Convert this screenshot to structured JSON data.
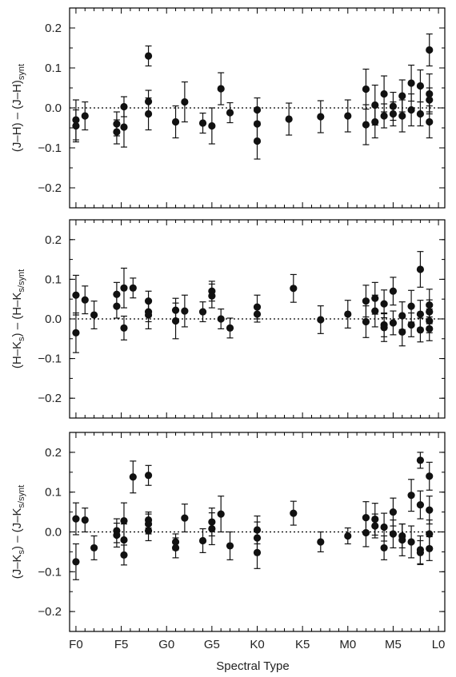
{
  "chart_data": {
    "type": "scatter",
    "xlabel": "Spectral Type",
    "x_ticks": [
      {
        "label": "F0",
        "pos": 0
      },
      {
        "label": "F5",
        "pos": 5
      },
      {
        "label": "G0",
        "pos": 10
      },
      {
        "label": "G5",
        "pos": 15
      },
      {
        "label": "K0",
        "pos": 20
      },
      {
        "label": "K5",
        "pos": 25
      },
      {
        "label": "M0",
        "pos": 30
      },
      {
        "label": "M5",
        "pos": 35
      },
      {
        "label": "L0",
        "pos": 40
      }
    ],
    "xlim": [
      -0.7,
      40.7
    ],
    "panels": [
      {
        "id": "jh",
        "ylabel_main": "(J–H) – (J–H)",
        "ylabel_sub": "synt",
        "ylim": [
          -0.25,
          0.25
        ],
        "y_ticks": [
          "0.2",
          "0.1",
          "0.0",
          "−0.1",
          "−0.2"
        ],
        "y_tick_values": [
          0.2,
          0.1,
          0.0,
          -0.1,
          -0.2
        ],
        "points": [
          {
            "x": 0.0,
            "y": -0.03,
            "err": 0.05
          },
          {
            "x": 0.0,
            "y": -0.045,
            "err": 0.04
          },
          {
            "x": 1.0,
            "y": -0.02,
            "err": 0.035
          },
          {
            "x": 4.5,
            "y": -0.04,
            "err": 0.03
          },
          {
            "x": 4.5,
            "y": -0.06,
            "err": 0.03
          },
          {
            "x": 5.3,
            "y": 0.003,
            "err": 0.025
          },
          {
            "x": 5.3,
            "y": -0.048,
            "err": 0.05
          },
          {
            "x": 8.0,
            "y": 0.13,
            "err": 0.025
          },
          {
            "x": 8.0,
            "y": 0.016,
            "err": 0.028
          },
          {
            "x": 8.0,
            "y": -0.015,
            "err": 0.04
          },
          {
            "x": 11.0,
            "y": -0.035,
            "err": 0.04
          },
          {
            "x": 12.0,
            "y": 0.015,
            "err": 0.05
          },
          {
            "x": 14.0,
            "y": -0.038,
            "err": 0.025
          },
          {
            "x": 15.0,
            "y": -0.045,
            "err": 0.045
          },
          {
            "x": 16.0,
            "y": 0.048,
            "err": 0.04
          },
          {
            "x": 17.0,
            "y": -0.012,
            "err": 0.025
          },
          {
            "x": 20.0,
            "y": -0.005,
            "err": 0.03
          },
          {
            "x": 20.0,
            "y": -0.04,
            "err": 0.04
          },
          {
            "x": 20.0,
            "y": -0.083,
            "err": 0.045
          },
          {
            "x": 23.5,
            "y": -0.028,
            "err": 0.04
          },
          {
            "x": 27.0,
            "y": -0.022,
            "err": 0.04
          },
          {
            "x": 30.0,
            "y": -0.02,
            "err": 0.04
          },
          {
            "x": 32.0,
            "y": 0.047,
            "err": 0.05
          },
          {
            "x": 32.0,
            "y": -0.042,
            "err": 0.05
          },
          {
            "x": 33.0,
            "y": 0.007,
            "err": 0.05
          },
          {
            "x": 33.0,
            "y": -0.035,
            "err": 0.04
          },
          {
            "x": 34.0,
            "y": 0.035,
            "err": 0.045
          },
          {
            "x": 34.0,
            "y": -0.02,
            "err": 0.03
          },
          {
            "x": 35.0,
            "y": 0.004,
            "err": 0.035
          },
          {
            "x": 35.0,
            "y": -0.015,
            "err": 0.03
          },
          {
            "x": 36.0,
            "y": 0.03,
            "err": 0.04
          },
          {
            "x": 36.0,
            "y": -0.02,
            "err": 0.04
          },
          {
            "x": 37.0,
            "y": 0.062,
            "err": 0.045
          },
          {
            "x": 37.0,
            "y": -0.005,
            "err": 0.04
          },
          {
            "x": 38.0,
            "y": 0.055,
            "err": 0.04
          },
          {
            "x": 38.0,
            "y": -0.015,
            "err": 0.03
          },
          {
            "x": 39.0,
            "y": 0.145,
            "err": 0.04
          },
          {
            "x": 39.0,
            "y": 0.035,
            "err": 0.05
          },
          {
            "x": 39.0,
            "y": 0.02,
            "err": 0.03
          },
          {
            "x": 39.0,
            "y": -0.035,
            "err": 0.04
          }
        ]
      },
      {
        "id": "hk",
        "ylabel_main": "(H–K",
        "ylabel_mid": ") – (H–K",
        "ylabel_sub1": "s",
        "ylabel_sub2": "s/synt",
        "ylim": [
          -0.25,
          0.25
        ],
        "y_ticks": [
          "0.2",
          "0.1",
          "0.0",
          "−0.1",
          "−0.2"
        ],
        "y_tick_values": [
          0.2,
          0.1,
          0.0,
          -0.1,
          -0.2
        ],
        "points": [
          {
            "x": 0.0,
            "y": 0.06,
            "err": 0.05
          },
          {
            "x": 0.0,
            "y": -0.035,
            "err": 0.05
          },
          {
            "x": 1.0,
            "y": 0.048,
            "err": 0.035
          },
          {
            "x": 2.0,
            "y": 0.01,
            "err": 0.035
          },
          {
            "x": 4.5,
            "y": 0.062,
            "err": 0.03
          },
          {
            "x": 4.5,
            "y": 0.032,
            "err": 0.03
          },
          {
            "x": 5.3,
            "y": 0.078,
            "err": 0.05
          },
          {
            "x": 5.3,
            "y": -0.023,
            "err": 0.03
          },
          {
            "x": 6.3,
            "y": 0.078,
            "err": 0.025
          },
          {
            "x": 8.0,
            "y": 0.045,
            "err": 0.025
          },
          {
            "x": 8.0,
            "y": 0.018,
            "err": 0.025
          },
          {
            "x": 8.0,
            "y": 0.01,
            "err": 0.035
          },
          {
            "x": 11.0,
            "y": 0.022,
            "err": 0.03
          },
          {
            "x": 11.0,
            "y": -0.005,
            "err": 0.045
          },
          {
            "x": 12.0,
            "y": 0.02,
            "err": 0.04
          },
          {
            "x": 14.0,
            "y": 0.018,
            "err": 0.025
          },
          {
            "x": 15.0,
            "y": 0.07,
            "err": 0.025
          },
          {
            "x": 15.0,
            "y": 0.058,
            "err": 0.03
          },
          {
            "x": 16.0,
            "y": 0.0,
            "err": 0.025
          },
          {
            "x": 17.0,
            "y": -0.023,
            "err": 0.025
          },
          {
            "x": 20.0,
            "y": 0.03,
            "err": 0.03
          },
          {
            "x": 20.0,
            "y": 0.012,
            "err": 0.02
          },
          {
            "x": 24.0,
            "y": 0.077,
            "err": 0.035
          },
          {
            "x": 27.0,
            "y": -0.002,
            "err": 0.035
          },
          {
            "x": 30.0,
            "y": 0.012,
            "err": 0.035
          },
          {
            "x": 32.0,
            "y": 0.045,
            "err": 0.04
          },
          {
            "x": 32.0,
            "y": -0.007,
            "err": 0.04
          },
          {
            "x": 33.0,
            "y": 0.052,
            "err": 0.04
          },
          {
            "x": 33.0,
            "y": 0.02,
            "err": 0.04
          },
          {
            "x": 34.0,
            "y": 0.038,
            "err": 0.035
          },
          {
            "x": 34.0,
            "y": -0.015,
            "err": 0.03
          },
          {
            "x": 34.0,
            "y": -0.022,
            "err": 0.035
          },
          {
            "x": 35.0,
            "y": 0.07,
            "err": 0.035
          },
          {
            "x": 35.0,
            "y": -0.01,
            "err": 0.03
          },
          {
            "x": 36.0,
            "y": 0.008,
            "err": 0.035
          },
          {
            "x": 36.0,
            "y": -0.033,
            "err": 0.035
          },
          {
            "x": 37.0,
            "y": 0.032,
            "err": 0.04
          },
          {
            "x": 37.0,
            "y": -0.015,
            "err": 0.03
          },
          {
            "x": 38.0,
            "y": 0.125,
            "err": 0.045
          },
          {
            "x": 38.0,
            "y": 0.012,
            "err": 0.035
          },
          {
            "x": 38.0,
            "y": -0.028,
            "err": 0.03
          },
          {
            "x": 39.0,
            "y": 0.035,
            "err": 0.04
          },
          {
            "x": 39.0,
            "y": 0.018,
            "err": 0.03
          },
          {
            "x": 39.0,
            "y": -0.005,
            "err": 0.03
          },
          {
            "x": 39.0,
            "y": -0.025,
            "err": 0.03
          }
        ]
      },
      {
        "id": "jk",
        "ylabel_main": "(J–K",
        "ylabel_mid": ") – (J–K",
        "ylabel_sub1": "s",
        "ylabel_sub2": "s/synt",
        "ylim": [
          -0.25,
          0.25
        ],
        "y_ticks": [
          "0.2",
          "0.1",
          "0.0",
          "−0.1",
          "−0.2"
        ],
        "y_tick_values": [
          0.2,
          0.1,
          0.0,
          -0.1,
          -0.2
        ],
        "points": [
          {
            "x": 0.0,
            "y": 0.033,
            "err": 0.04
          },
          {
            "x": 0.0,
            "y": -0.075,
            "err": 0.045
          },
          {
            "x": 1.0,
            "y": 0.03,
            "err": 0.03
          },
          {
            "x": 2.0,
            "y": -0.04,
            "err": 0.03
          },
          {
            "x": 4.5,
            "y": 0.003,
            "err": 0.03
          },
          {
            "x": 4.5,
            "y": -0.008,
            "err": 0.03
          },
          {
            "x": 5.3,
            "y": 0.028,
            "err": 0.045
          },
          {
            "x": 5.3,
            "y": -0.02,
            "err": 0.04
          },
          {
            "x": 5.3,
            "y": -0.058,
            "err": 0.025
          },
          {
            "x": 6.3,
            "y": 0.138,
            "err": 0.04
          },
          {
            "x": 8.0,
            "y": 0.142,
            "err": 0.025
          },
          {
            "x": 8.0,
            "y": 0.03,
            "err": 0.02
          },
          {
            "x": 8.0,
            "y": 0.02,
            "err": 0.025
          },
          {
            "x": 8.0,
            "y": 0.003,
            "err": 0.025
          },
          {
            "x": 11.0,
            "y": -0.025,
            "err": 0.02
          },
          {
            "x": 11.0,
            "y": -0.04,
            "err": 0.025
          },
          {
            "x": 12.0,
            "y": 0.035,
            "err": 0.035
          },
          {
            "x": 14.0,
            "y": -0.022,
            "err": 0.03
          },
          {
            "x": 15.0,
            "y": 0.025,
            "err": 0.035
          },
          {
            "x": 15.0,
            "y": 0.008,
            "err": 0.04
          },
          {
            "x": 16.0,
            "y": 0.045,
            "err": 0.045
          },
          {
            "x": 17.0,
            "y": -0.035,
            "err": 0.035
          },
          {
            "x": 20.0,
            "y": 0.005,
            "err": 0.035
          },
          {
            "x": 20.0,
            "y": -0.015,
            "err": 0.04
          },
          {
            "x": 20.0,
            "y": -0.052,
            "err": 0.04
          },
          {
            "x": 24.0,
            "y": 0.047,
            "err": 0.03
          },
          {
            "x": 27.0,
            "y": -0.025,
            "err": 0.025
          },
          {
            "x": 30.0,
            "y": -0.01,
            "err": 0.02
          },
          {
            "x": 32.0,
            "y": 0.036,
            "err": 0.04
          },
          {
            "x": 32.0,
            "y": -0.002,
            "err": 0.035
          },
          {
            "x": 33.0,
            "y": 0.032,
            "err": 0.04
          },
          {
            "x": 33.0,
            "y": 0.015,
            "err": 0.03
          },
          {
            "x": 34.0,
            "y": 0.012,
            "err": 0.035
          },
          {
            "x": 34.0,
            "y": -0.04,
            "err": 0.03
          },
          {
            "x": 35.0,
            "y": 0.05,
            "err": 0.035
          },
          {
            "x": 35.0,
            "y": -0.005,
            "err": 0.035
          },
          {
            "x": 36.0,
            "y": -0.01,
            "err": 0.03
          },
          {
            "x": 36.0,
            "y": -0.02,
            "err": 0.04
          },
          {
            "x": 37.0,
            "y": 0.092,
            "err": 0.04
          },
          {
            "x": 37.0,
            "y": -0.025,
            "err": 0.04
          },
          {
            "x": 38.0,
            "y": 0.18,
            "err": 0.02
          },
          {
            "x": 38.0,
            "y": 0.068,
            "err": 0.035
          },
          {
            "x": 38.0,
            "y": -0.045,
            "err": 0.035
          },
          {
            "x": 38.0,
            "y": -0.052,
            "err": 0.03
          },
          {
            "x": 39.0,
            "y": 0.14,
            "err": 0.035
          },
          {
            "x": 39.0,
            "y": 0.055,
            "err": 0.035
          },
          {
            "x": 39.0,
            "y": -0.005,
            "err": 0.035
          },
          {
            "x": 39.0,
            "y": -0.042,
            "err": 0.03
          }
        ]
      }
    ]
  }
}
